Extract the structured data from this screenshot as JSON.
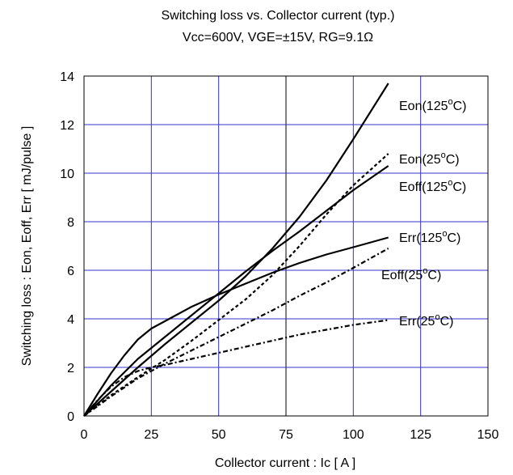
{
  "chart_data": {
    "type": "line",
    "title": "Switching loss vs. Collector current (typ.)",
    "subtitle": "Vcc=600V, VGE=±15V, RG=9.1Ω",
    "xlabel": "Collector current : Ic [ A ]",
    "ylabel": "Switching loss : Eon, Eoff, Err [ mJ/pulse ]",
    "xlim": [
      0,
      150
    ],
    "ylim": [
      0,
      14
    ],
    "xticks": [
      0,
      25,
      50,
      75,
      100,
      125,
      150
    ],
    "yticks": [
      0,
      2,
      4,
      6,
      8,
      10,
      12,
      14
    ],
    "grid": true,
    "grid_color": "#3333cc",
    "highlight_gridline_x": 75,
    "series": [
      {
        "name": "Eon(125°C)",
        "label_parts": [
          "Eon(125",
          "o",
          "C)"
        ],
        "style": "solid",
        "x": [
          0,
          10,
          20,
          30,
          40,
          50,
          60,
          70,
          80,
          90,
          100,
          113
        ],
        "y": [
          0,
          1.0,
          2.0,
          2.95,
          3.85,
          4.75,
          5.75,
          6.9,
          8.2,
          9.7,
          11.4,
          13.7
        ]
      },
      {
        "name": "Eon(25°C)",
        "label_parts": [
          "Eon(25",
          "o",
          "C)"
        ],
        "style": "dotted",
        "x": [
          0,
          10,
          20,
          30,
          40,
          50,
          60,
          70,
          80,
          90,
          100,
          113
        ],
        "y": [
          0,
          0.85,
          1.6,
          2.3,
          3.1,
          3.95,
          4.8,
          5.8,
          7.0,
          8.3,
          9.5,
          10.8
        ]
      },
      {
        "name": "Eoff(125°C)",
        "label_parts": [
          "Eoff(125",
          "o",
          "C)"
        ],
        "style": "solid",
        "x": [
          0,
          10,
          20,
          30,
          40,
          50,
          60,
          70,
          80,
          90,
          100,
          113
        ],
        "y": [
          0,
          1.25,
          2.35,
          3.25,
          4.15,
          5.05,
          5.95,
          6.8,
          7.6,
          8.45,
          9.3,
          10.3
        ]
      },
      {
        "name": "Err(125°C)",
        "label_parts": [
          "Err(125",
          "o",
          "C)"
        ],
        "style": "solid",
        "x": [
          0,
          5,
          10,
          15,
          20,
          25,
          30,
          40,
          50,
          60,
          70,
          80,
          90,
          100,
          113
        ],
        "y": [
          0,
          0.9,
          1.75,
          2.5,
          3.15,
          3.6,
          3.9,
          4.5,
          5.0,
          5.45,
          5.9,
          6.3,
          6.65,
          6.95,
          7.35
        ]
      },
      {
        "name": "Eoff(25°C)",
        "label_parts": [
          "Eoff(25",
          "o",
          "C)"
        ],
        "style": "dashdot",
        "x": [
          0,
          10,
          20,
          30,
          40,
          50,
          60,
          70,
          80,
          90,
          100,
          113
        ],
        "y": [
          0,
          0.8,
          1.55,
          2.15,
          2.7,
          3.25,
          3.8,
          4.35,
          4.95,
          5.5,
          6.1,
          6.9
        ]
      },
      {
        "name": "Err(25°C)",
        "label_parts": [
          "Err(25",
          "o",
          "C)"
        ],
        "style": "dashdot",
        "x": [
          0,
          5,
          10,
          15,
          20,
          25,
          30,
          40,
          50,
          60,
          70,
          80,
          90,
          100,
          113
        ],
        "y": [
          0,
          0.65,
          1.2,
          1.6,
          1.85,
          2.0,
          2.1,
          2.35,
          2.6,
          2.85,
          3.1,
          3.35,
          3.55,
          3.75,
          3.95
        ]
      }
    ]
  }
}
